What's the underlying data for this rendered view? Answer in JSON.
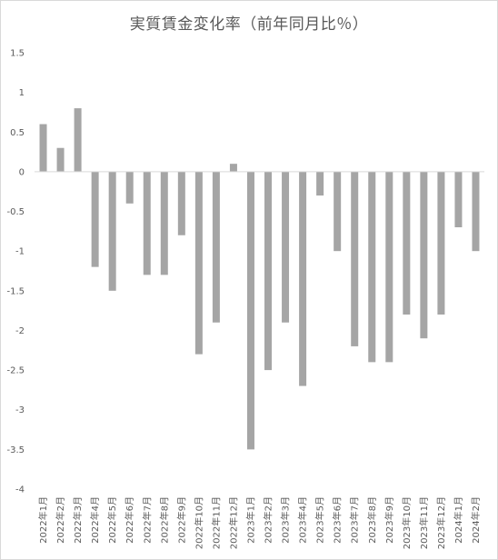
{
  "chart_data": {
    "type": "bar",
    "title": "実質賃金変化率（前年同月比％）",
    "xlabel": "",
    "ylabel": "",
    "ylim": [
      -4,
      1.5
    ],
    "ytick_step": 0.5,
    "ytick_labels": [
      "1.5",
      "1",
      "0.5",
      "0",
      "-0.5",
      "-1",
      "-1.5",
      "-2",
      "-2.5",
      "-3",
      "-3.5",
      "-4"
    ],
    "grid": false,
    "legend": "none",
    "bar_color": "#a5a5a5",
    "categories": [
      "2022年1月",
      "2022年2月",
      "2022年3月",
      "2022年4月",
      "2022年5月",
      "2022年6月",
      "2022年7月",
      "2022年8月",
      "2022年9月",
      "2022年10月",
      "2022年11月",
      "2022年12月",
      "2023年1月",
      "2023年2月",
      "2023年3月",
      "2023年4月",
      "2023年5月",
      "2023年6月",
      "2023年7月",
      "2023年8月",
      "2023年9月",
      "2023年10月",
      "2023年11月",
      "2023年12月",
      "2024年1月",
      "2024年2月"
    ],
    "values": [
      0.6,
      0.3,
      0.8,
      -1.2,
      -1.5,
      -0.4,
      -1.3,
      -1.3,
      -0.8,
      -2.3,
      -1.9,
      0.1,
      -3.5,
      -2.5,
      -1.9,
      -2.7,
      -0.3,
      -1.0,
      -2.2,
      -2.4,
      -2.4,
      -1.8,
      -2.1,
      -1.8,
      -0.7,
      -1.0
    ]
  }
}
